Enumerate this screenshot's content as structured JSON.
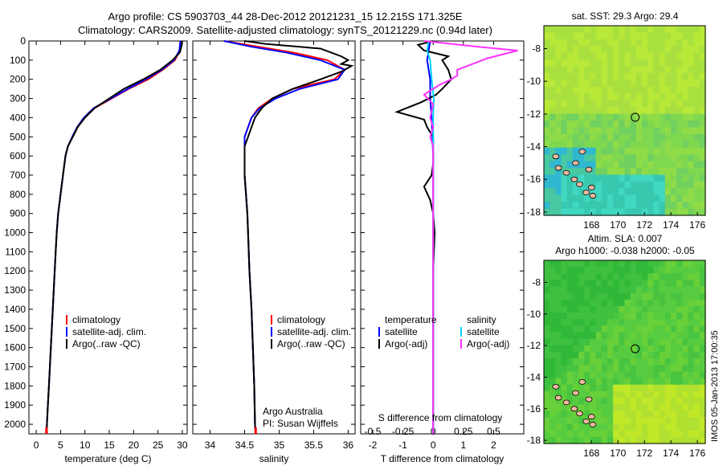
{
  "header": {
    "line1": "Argo profile: CS 5903703_44 28-Dec-2012 20121231_15 12.215S 171.325E",
    "line2": "Climatology: CARS2009. Satellite-adjusted climatology: synTS_20121229.nc (0.94d later)"
  },
  "side_label": "IMOS 05-Jan-2013 17:00:35",
  "colors": {
    "climatology": "#ff0000",
    "satellite": "#0000ff",
    "argo": "#000000",
    "salinity_sat": "#00d4ff",
    "salinity_argo": "#ff33ff",
    "land": "#f0b9a2"
  },
  "chart_data": [
    {
      "id": "temperature",
      "type": "line",
      "xlabel": "temperature (deg C)",
      "xlim": [
        -1.5,
        31
      ],
      "ylim": [
        0,
        2050
      ],
      "xticks": [
        0,
        5,
        10,
        15,
        20,
        25,
        30
      ],
      "yticks": [
        0,
        100,
        200,
        300,
        400,
        500,
        600,
        700,
        800,
        900,
        1000,
        1100,
        1200,
        1300,
        1400,
        1500,
        1600,
        1700,
        1800,
        1900,
        2000
      ],
      "legend": [
        "climatology",
        "satellite-adj. clim.",
        "Argo(..raw -QC)"
      ],
      "series": [
        {
          "key": "climatology",
          "points": [
            [
              29.8,
              0
            ],
            [
              29.5,
              50
            ],
            [
              28.5,
              100
            ],
            [
              26,
              150
            ],
            [
              23,
              200
            ],
            [
              19,
              250
            ],
            [
              15.5,
              300
            ],
            [
              12,
              350
            ],
            [
              10,
              400
            ],
            [
              8.5,
              450
            ],
            [
              7.5,
              500
            ],
            [
              6.5,
              550
            ],
            [
              6,
              600
            ],
            [
              5.5,
              700
            ],
            [
              5,
              800
            ],
            [
              4.5,
              900
            ],
            [
              4.2,
              1000
            ],
            [
              4,
              1100
            ],
            [
              3.8,
              1200
            ],
            [
              3.6,
              1300
            ],
            [
              3.4,
              1400
            ],
            [
              3.2,
              1500
            ],
            [
              3,
              1600
            ],
            [
              2.8,
              1700
            ],
            [
              2.6,
              1800
            ],
            [
              2.4,
              1900
            ],
            [
              2.2,
              2000
            ],
            [
              2.1,
              2050
            ]
          ]
        },
        {
          "key": "satellite",
          "points": [
            [
              29.6,
              0
            ],
            [
              29.4,
              50
            ],
            [
              28.3,
              100
            ],
            [
              25.8,
              150
            ],
            [
              22.5,
              200
            ],
            [
              18.8,
              250
            ],
            [
              15.3,
              300
            ],
            [
              11.8,
              350
            ],
            [
              9.8,
              400
            ],
            [
              8.4,
              450
            ],
            [
              7.4,
              500
            ],
            [
              6.5,
              550
            ],
            [
              6,
              600
            ],
            [
              5.5,
              700
            ],
            [
              5,
              800
            ],
            [
              4.5,
              900
            ],
            [
              4.2,
              1000
            ],
            [
              4,
              1100
            ],
            [
              3.8,
              1200
            ],
            [
              3.6,
              1300
            ],
            [
              3.4,
              1400
            ],
            [
              3.2,
              1500
            ],
            [
              3,
              1600
            ],
            [
              2.8,
              1700
            ],
            [
              2.6,
              1800
            ],
            [
              2.4,
              1900
            ],
            [
              2.2,
              2000
            ],
            [
              2.15,
              2050
            ]
          ]
        },
        {
          "key": "argo",
          "points": [
            [
              30,
              0
            ],
            [
              29.8,
              30
            ],
            [
              29.5,
              60
            ],
            [
              28,
              100
            ],
            [
              25.5,
              150
            ],
            [
              22,
              200
            ],
            [
              18,
              250
            ],
            [
              15,
              300
            ],
            [
              12,
              350
            ],
            [
              10,
              400
            ],
            [
              8.5,
              450
            ],
            [
              7.5,
              500
            ],
            [
              6.5,
              550
            ],
            [
              6,
              600
            ],
            [
              5.5,
              700
            ],
            [
              5,
              800
            ],
            [
              4.5,
              900
            ],
            [
              4.2,
              1000
            ],
            [
              4,
              1100
            ],
            [
              3.8,
              1200
            ],
            [
              3.6,
              1300
            ],
            [
              3.4,
              1400
            ],
            [
              3.2,
              1500
            ],
            [
              3,
              1600
            ],
            [
              2.8,
              1700
            ],
            [
              2.6,
              1800
            ],
            [
              2.4,
              1900
            ],
            [
              2.2,
              2000
            ],
            [
              2.15,
              2050
            ]
          ]
        }
      ]
    },
    {
      "id": "salinity",
      "type": "line",
      "xlabel": "salinity",
      "xlim": [
        33.75,
        36.1
      ],
      "ylim": [
        0,
        2050
      ],
      "xticks": [
        34,
        34.5,
        35,
        35.5,
        36
      ],
      "legend": [
        "climatology",
        "satellite-adj. clim.",
        "Argo(..raw -QC)"
      ],
      "annotation": [
        "Argo Australia",
        "PI: Susan Wijffels"
      ],
      "series": [
        {
          "key": "climatology",
          "points": [
            [
              34.2,
              0
            ],
            [
              34.7,
              30
            ],
            [
              35.2,
              60
            ],
            [
              35.7,
              100
            ],
            [
              35.95,
              150
            ],
            [
              35.8,
              200
            ],
            [
              35.2,
              250
            ],
            [
              34.9,
              300
            ],
            [
              34.7,
              350
            ],
            [
              34.6,
              400
            ],
            [
              34.55,
              450
            ],
            [
              34.5,
              500
            ],
            [
              34.5,
              600
            ],
            [
              34.5,
              700
            ],
            [
              34.52,
              800
            ],
            [
              34.54,
              900
            ],
            [
              34.55,
              1000
            ],
            [
              34.57,
              1200
            ],
            [
              34.6,
              1400
            ],
            [
              34.62,
              1600
            ],
            [
              34.64,
              1800
            ],
            [
              34.65,
              2000
            ],
            [
              34.66,
              2050
            ]
          ]
        },
        {
          "key": "satellite",
          "points": [
            [
              34.2,
              0
            ],
            [
              34.6,
              30
            ],
            [
              35.1,
              60
            ],
            [
              35.6,
              100
            ],
            [
              35.95,
              150
            ],
            [
              35.85,
              200
            ],
            [
              35.3,
              250
            ],
            [
              34.95,
              300
            ],
            [
              34.72,
              350
            ],
            [
              34.6,
              400
            ],
            [
              34.55,
              450
            ],
            [
              34.5,
              500
            ],
            [
              34.5,
              600
            ],
            [
              34.5,
              700
            ],
            [
              34.52,
              800
            ],
            [
              34.54,
              900
            ],
            [
              34.55,
              1000
            ],
            [
              34.57,
              1200
            ],
            [
              34.6,
              1400
            ],
            [
              34.62,
              1600
            ],
            [
              34.64,
              1800
            ],
            [
              34.65,
              2000
            ],
            [
              34.66,
              2050
            ]
          ]
        },
        {
          "key": "argo",
          "points": [
            [
              34.5,
              0
            ],
            [
              34.8,
              15
            ],
            [
              35.6,
              40
            ],
            [
              35.75,
              60
            ],
            [
              35.9,
              80
            ],
            [
              36,
              100
            ],
            [
              35.9,
              120
            ],
            [
              36.05,
              130
            ],
            [
              35.9,
              160
            ],
            [
              35.6,
              200
            ],
            [
              35.2,
              250
            ],
            [
              34.9,
              300
            ],
            [
              34.75,
              350
            ],
            [
              34.65,
              400
            ],
            [
              34.6,
              450
            ],
            [
              34.55,
              500
            ],
            [
              34.5,
              550
            ],
            [
              34.5,
              600
            ],
            [
              34.5,
              700
            ],
            [
              34.52,
              800
            ],
            [
              34.54,
              900
            ],
            [
              34.55,
              1000
            ],
            [
              34.57,
              1200
            ],
            [
              34.6,
              1400
            ],
            [
              34.62,
              1600
            ],
            [
              34.64,
              1800
            ],
            [
              34.65,
              2000
            ],
            [
              34.66,
              2050
            ]
          ]
        }
      ]
    },
    {
      "id": "differences",
      "type": "line",
      "xlabel": "T difference from climatology",
      "xlabel_top": "S difference from climatology",
      "xlim": [
        -2.4,
        3
      ],
      "ylim": [
        0,
        2050
      ],
      "xticks": [
        -2,
        -1,
        0,
        1,
        2
      ],
      "xticks_s": [
        "-0.5",
        "-0.25",
        "0",
        "0.25",
        "0.5"
      ],
      "legend_temperature": [
        "temperature",
        "satellite",
        "Argo(-adj)"
      ],
      "legend_salinity": [
        "salinity",
        "satellite",
        "Argo(-adj)"
      ],
      "series": [
        {
          "key": "t_satellite",
          "points": [
            [
              -0.1,
              0
            ],
            [
              -0.2,
              100
            ],
            [
              -0.1,
              200
            ],
            [
              -0.1,
              300
            ],
            [
              -0.05,
              400
            ],
            [
              0,
              600
            ],
            [
              0,
              1000
            ],
            [
              0,
              1400
            ],
            [
              0,
              2050
            ]
          ]
        },
        {
          "key": "t_argo",
          "points": [
            [
              0,
              0
            ],
            [
              -0.5,
              20
            ],
            [
              -0.3,
              50
            ],
            [
              0.5,
              80
            ],
            [
              0.3,
              100
            ],
            [
              0.5,
              150
            ],
            [
              0.6,
              200
            ],
            [
              0.3,
              250
            ],
            [
              0.1,
              280
            ],
            [
              -0.4,
              320
            ],
            [
              -1.2,
              370
            ],
            [
              -0.3,
              410
            ],
            [
              -0.2,
              450
            ],
            [
              0,
              500
            ],
            [
              0,
              560
            ],
            [
              0,
              640
            ],
            [
              -0.05,
              700
            ],
            [
              -0.3,
              760
            ],
            [
              -0.1,
              830
            ],
            [
              0,
              900
            ],
            [
              0.05,
              1000
            ],
            [
              0,
              1200
            ],
            [
              0,
              1400
            ],
            [
              0,
              2050
            ]
          ]
        },
        {
          "key": "s_satellite",
          "points": [
            [
              -0.15,
              0
            ],
            [
              -0.2,
              50
            ],
            [
              -0.1,
              100
            ],
            [
              -0.05,
              200
            ],
            [
              0.02,
              300
            ],
            [
              0,
              400
            ],
            [
              0,
              500
            ],
            [
              0,
              1000
            ],
            [
              0,
              2050
            ]
          ]
        },
        {
          "key": "s_argo",
          "points": [
            [
              -0.3,
              0
            ],
            [
              1.5,
              30
            ],
            [
              2.8,
              50
            ],
            [
              1.8,
              90
            ],
            [
              0.8,
              150
            ],
            [
              0.8,
              180
            ],
            [
              0.6,
              200
            ],
            [
              0.2,
              230
            ],
            [
              -0.3,
              280
            ],
            [
              0,
              330
            ],
            [
              -0.1,
              400
            ],
            [
              0,
              450
            ],
            [
              -0.1,
              500
            ],
            [
              0,
              550
            ],
            [
              0,
              600
            ],
            [
              0,
              1000
            ],
            [
              0,
              2050
            ]
          ]
        }
      ]
    },
    {
      "id": "sst_map",
      "type": "heatmap",
      "title": "sat. SST: 29.3 Argo: 29.4",
      "xlim": [
        164.4,
        176.6
      ],
      "ylim": [
        -18.2,
        -6.6
      ],
      "xticks": [
        168,
        170,
        172,
        174,
        176
      ],
      "yticks": [
        -8,
        -10,
        -12,
        -14,
        -16,
        -18
      ],
      "marker": [
        171.3,
        -12.2
      ]
    },
    {
      "id": "sla_map",
      "type": "heatmap",
      "title": "Altim. SLA: 0.007",
      "subtitle": "Argo h1000: -0.038 h2000: -0.05",
      "xlim": [
        164.4,
        176.6
      ],
      "ylim": [
        -18.2,
        -6.6
      ],
      "xticks": [
        168,
        170,
        172,
        174,
        176
      ],
      "yticks": [
        -8,
        -10,
        -12,
        -14,
        -16,
        -18
      ],
      "marker": [
        171.3,
        -12.2
      ]
    }
  ]
}
